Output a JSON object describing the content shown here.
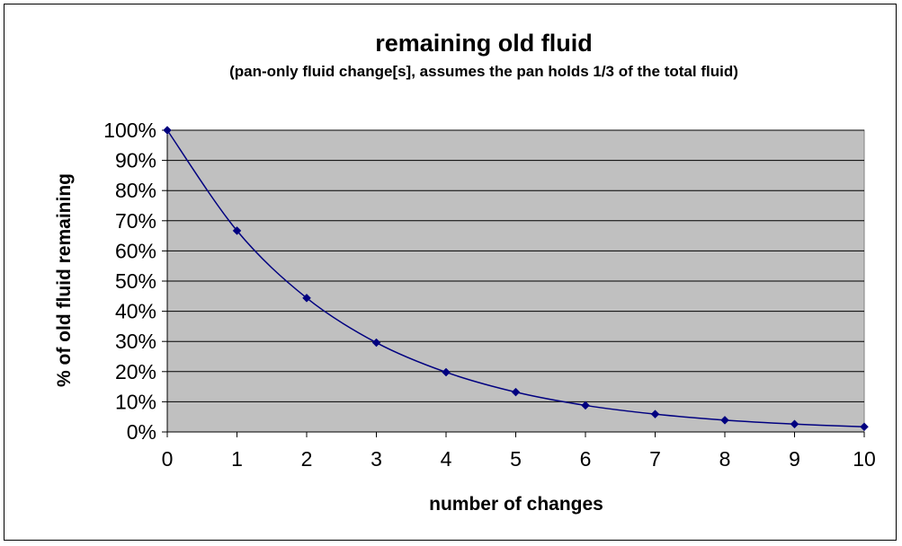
{
  "chart_data": {
    "type": "line",
    "title": "remaining old fluid",
    "subtitle": "(pan-only fluid change[s], assumes the pan holds 1/3 of the total fluid)",
    "xlabel": "number of changes",
    "ylabel": "% of old fluid remaining",
    "x": [
      0,
      1,
      2,
      3,
      4,
      5,
      6,
      7,
      8,
      9,
      10
    ],
    "x_tick_labels": [
      "0",
      "1",
      "2",
      "3",
      "4",
      "5",
      "6",
      "7",
      "8",
      "9",
      "10"
    ],
    "y_tick_labels": [
      "0%",
      "10%",
      "20%",
      "30%",
      "40%",
      "50%",
      "60%",
      "70%",
      "80%",
      "90%",
      "100%"
    ],
    "ylim": [
      0,
      100
    ],
    "xlim": [
      0,
      10
    ],
    "grid": true,
    "legend": "none",
    "series": [
      {
        "values": [
          100,
          66.7,
          44.4,
          29.6,
          19.8,
          13.2,
          8.8,
          5.9,
          3.9,
          2.6,
          1.7
        ]
      }
    ],
    "colors": {
      "plot_background": "#c0c0c0",
      "gridline": "#000000",
      "line": "#000080",
      "marker": "#000080"
    }
  }
}
